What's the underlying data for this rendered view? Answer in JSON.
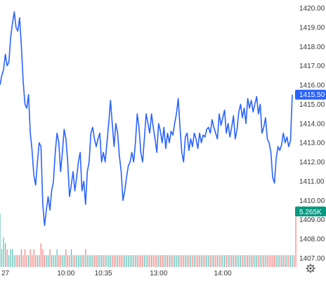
{
  "chart_data": {
    "type": "line",
    "title": "",
    "xlabel": "",
    "ylabel": "",
    "ylim": [
      1406.8,
      1420.2
    ],
    "y_ticks": [
      "1407.00",
      "1408.00",
      "1409.00",
      "1410.00",
      "1411.00",
      "1412.00",
      "1413.00",
      "1414.00",
      "1415.00",
      "1416.00",
      "1417.00",
      "1418.00",
      "1419.00",
      "1420.00"
    ],
    "x_ticks": [
      {
        "label": "27",
        "idx": 0
      },
      {
        "label": "10:00",
        "idx": 37
      },
      {
        "label": "10:35",
        "idx": 58
      },
      {
        "label": "13:00",
        "idx": 89
      },
      {
        "label": "14:00",
        "idx": 125
      }
    ],
    "grid": false,
    "series": [
      {
        "color": "#2962ff",
        "values": [
          1416.0,
          1416.5,
          1416.8,
          1417.6,
          1417.0,
          1417.2,
          1418.5,
          1419.2,
          1419.8,
          1419.0,
          1418.8,
          1419.5,
          1418.0,
          1416.2,
          1415.0,
          1414.8,
          1415.5,
          1413.5,
          1412.6,
          1411.3,
          1410.8,
          1412.0,
          1413.0,
          1412.8,
          1409.8,
          1408.7,
          1409.5,
          1410.2,
          1409.5,
          1410.5,
          1411.0,
          1412.5,
          1413.5,
          1413.0,
          1411.5,
          1412.5,
          1413.7,
          1413.2,
          1412.0,
          1410.2,
          1410.8,
          1411.5,
          1410.5,
          1411.2,
          1412.0,
          1412.5,
          1410.5,
          1411.0,
          1409.8,
          1411.5,
          1412.0,
          1413.5,
          1413.8,
          1413.2,
          1412.8,
          1413.2,
          1413.5,
          1412.0,
          1412.5,
          1412.0,
          1413.0,
          1414.0,
          1415.2,
          1414.0,
          1412.8,
          1414.0,
          1413.5,
          1412.3,
          1411.5,
          1410.0,
          1410.5,
          1411.2,
          1411.8,
          1412.0,
          1412.5,
          1412.0,
          1413.0,
          1414.5,
          1413.8,
          1412.5,
          1412.0,
          1413.2,
          1414.5,
          1414.0,
          1413.5,
          1414.5,
          1413.8,
          1413.2,
          1412.5,
          1414.0,
          1413.6,
          1413.0,
          1413.8,
          1412.7,
          1413.5,
          1413.0,
          1413.6,
          1413.4,
          1414.0,
          1414.5,
          1415.3,
          1413.8,
          1412.5,
          1412.0,
          1413.3,
          1413.5,
          1412.6,
          1413.2,
          1412.8,
          1413.5,
          1413.2,
          1412.7,
          1413.5,
          1413.0,
          1413.4,
          1413.3,
          1413.7,
          1413.8,
          1413.5,
          1414.2,
          1413.8,
          1413.5,
          1413.2,
          1414.5,
          1413.9,
          1414.3,
          1414.7,
          1413.5,
          1414.0,
          1413.3,
          1413.8,
          1414.4,
          1413.2,
          1413.7,
          1414.6,
          1415.0,
          1414.3,
          1414.8,
          1414.0,
          1415.3,
          1414.8,
          1415.2,
          1414.6,
          1415.0,
          1415.4,
          1414.5,
          1415.0,
          1413.5,
          1413.8,
          1414.3,
          1413.2,
          1413.0,
          1412.5,
          1411.2,
          1410.9,
          1412.2,
          1412.8,
          1412.6,
          1412.9,
          1413.5,
          1413.0,
          1413.3,
          1412.8,
          1413.1,
          1415.5
        ]
      }
    ],
    "last_price_label": "1415.50",
    "last_price_color": "#2962ff",
    "volume": {
      "label": "5.265K",
      "label_color": "#089981",
      "up_color": "#26a69a",
      "down_color": "#ef5350",
      "values": [
        0.9,
        0.3,
        0.5,
        0.4,
        0.3,
        0.2,
        0.3,
        0.3,
        0.2,
        0.2,
        0.2,
        0.2,
        0.3,
        0.2,
        0.3,
        0.2,
        0.2,
        0.3,
        0.2,
        0.3,
        0.2,
        0.2,
        0.2,
        0.4,
        0.3,
        0.2,
        0.2,
        0.2,
        0.3,
        0.2,
        0.2,
        0.2,
        0.3,
        0.2,
        0.2,
        0.2,
        0.2,
        0.3,
        0.2,
        0.2,
        0.3,
        0.2,
        0.2,
        0.2,
        0.2,
        0.2,
        0.2,
        0.2,
        0.3,
        0.2,
        0.2,
        0.2,
        0.2,
        0.2,
        0.2,
        0.2,
        0.2,
        0.2,
        0.2,
        0.2,
        0.2,
        0.2,
        0.2,
        0.2,
        0.2,
        0.2,
        0.2,
        0.2,
        0.2,
        0.2,
        0.2,
        0.2,
        0.2,
        0.2,
        0.2,
        0.2,
        0.2,
        0.2,
        0.2,
        0.2,
        0.2,
        0.2,
        0.2,
        0.2,
        0.2,
        0.2,
        0.2,
        0.2,
        0.2,
        0.2,
        0.2,
        0.2,
        0.2,
        0.2,
        0.2,
        0.2,
        0.2,
        0.2,
        0.2,
        0.2,
        0.2,
        0.2,
        0.2,
        0.2,
        0.2,
        0.2,
        0.2,
        0.2,
        0.2,
        0.2,
        0.2,
        0.2,
        0.2,
        0.2,
        0.2,
        0.2,
        0.2,
        0.2,
        0.2,
        0.2,
        0.2,
        0.2,
        0.2,
        0.2,
        0.2,
        0.2,
        0.2,
        0.2,
        0.2,
        0.2,
        0.2,
        0.2,
        0.2,
        0.2,
        0.2,
        0.2,
        0.2,
        0.2,
        0.2,
        0.2,
        0.2,
        0.2,
        0.2,
        0.2,
        0.2,
        0.2,
        0.2,
        0.2,
        0.2,
        0.2,
        0.2,
        0.2,
        0.2,
        0.2,
        0.2,
        0.2,
        0.2,
        0.2,
        0.2,
        0.2,
        0.2,
        0.2,
        0.2,
        0.2,
        0.2,
        0.2,
        1.0
      ]
    }
  },
  "settings_icon": "gear-icon"
}
